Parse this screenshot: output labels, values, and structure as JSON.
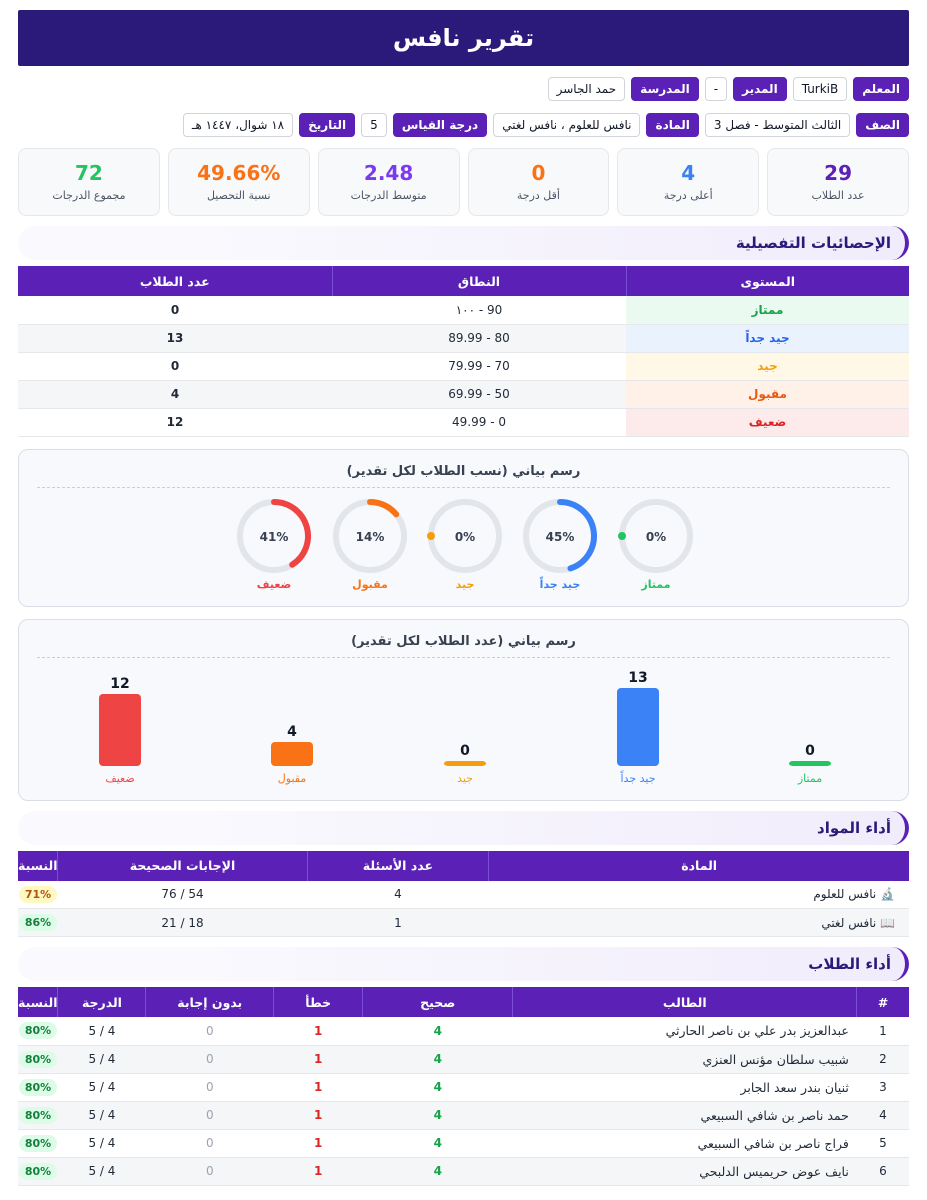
{
  "report_title": "تقرير نافس",
  "info_row1": [
    {
      "label": "المعلم",
      "value": "TurkiB"
    },
    {
      "label": "المدير",
      "value": "-"
    },
    {
      "label": "المدرسة",
      "value": "حمد الجاسر"
    }
  ],
  "info_row2": [
    {
      "label": "الصف",
      "value": "الثالث المتوسط - فصل 3"
    },
    {
      "label": "المادة",
      "value": "نافس للعلوم ، نافس لغتي"
    },
    {
      "label": "درجة القياس",
      "value": "5"
    },
    {
      "label": "التاريخ",
      "value": "١٨ شوال، ١٤٤٧ هـ"
    }
  ],
  "stats": [
    {
      "value": "29",
      "caption": "عدد الطلاب",
      "color": "#5b21b6"
    },
    {
      "value": "4",
      "caption": "أعلى درجة",
      "color": "#3b82f6"
    },
    {
      "value": "0",
      "caption": "أقل درجة",
      "color": "#f97316"
    },
    {
      "value": "2.48",
      "caption": "متوسط الدرجات",
      "color": "#7c3aed"
    },
    {
      "value": "49.66%",
      "caption": "نسبة التحصيل",
      "color": "#f97316"
    },
    {
      "value": "72",
      "caption": "مجموع الدرجات",
      "color": "#22c55e"
    }
  ],
  "section_detailed": "الإحصائيات التفصيلية",
  "detailed_table": {
    "headers": [
      "المستوى",
      "النطاق",
      "عدد الطلاب"
    ],
    "rows": [
      {
        "level": "ممتاز",
        "range": "90 - ١٠٠",
        "count": "0",
        "color": "#16a34a",
        "bg": "#eafaf0"
      },
      {
        "level": "جيد جداً",
        "range": "80 - 89.99",
        "count": "13",
        "color": "#2563eb",
        "bg": "#eaf2fe"
      },
      {
        "level": "جيد",
        "range": "70 - 79.99",
        "count": "0",
        "color": "#f59e0b",
        "bg": "#fff8e6"
      },
      {
        "level": "مقبول",
        "range": "50 - 69.99",
        "count": "4",
        "color": "#ea580c",
        "bg": "#fff1e8"
      },
      {
        "level": "ضعيف",
        "range": "0 - 49.99",
        "count": "12",
        "color": "#dc2626",
        "bg": "#fdeaea"
      }
    ]
  },
  "chart_data": [
    {
      "type": "pie",
      "title": "رسم بياني (نسب الطلاب لكل تقدير)",
      "categories": [
        "ممتاز",
        "جيد جداً",
        "جيد",
        "مقبول",
        "ضعيف"
      ],
      "values": [
        0,
        45,
        0,
        14,
        41
      ],
      "labels": [
        "0%",
        "45%",
        "0%",
        "14%",
        "41%"
      ],
      "colors": [
        "#22c55e",
        "#3b82f6",
        "#f59e0b",
        "#f97316",
        "#ef4444"
      ]
    },
    {
      "type": "bar",
      "title": "رسم بياني (عدد الطلاب لكل تقدير)",
      "categories": [
        "ممتاز",
        "جيد جداً",
        "جيد",
        "مقبول",
        "ضعيف"
      ],
      "values": [
        0,
        13,
        0,
        4,
        12
      ],
      "colors": [
        "#22c55e",
        "#3b82f6",
        "#f59e0b",
        "#f97316",
        "#ef4444"
      ]
    }
  ],
  "section_subjects": "أداء المواد",
  "subjects_table": {
    "headers": [
      "المادة",
      "عدد الأسئلة",
      "الإجابات الصحيحة",
      "النسبة"
    ],
    "rows": [
      {
        "icon": "🔬",
        "name": "نافس للعلوم",
        "questions": "4",
        "correct": "54 / 76",
        "pct": "71%",
        "pct_color": "yellow"
      },
      {
        "icon": "📖",
        "name": "نافس لغتي",
        "questions": "1",
        "correct": "18 / 21",
        "pct": "86%",
        "pct_color": "green"
      }
    ]
  },
  "section_students": "أداء الطلاب",
  "students_table": {
    "headers": [
      "#",
      "الطالب",
      "صحيح",
      "خطأ",
      "بدون إجابة",
      "الدرجة",
      "النسبة"
    ],
    "rows": [
      {
        "n": "1",
        "name": "عبدالعزيز بدر علي بن ناصر الحارثي",
        "correct": "4",
        "wrong": "1",
        "blank": "0",
        "score": "4 / 5",
        "pct": "80%"
      },
      {
        "n": "2",
        "name": "شبيب سلطان مؤنس العنزي",
        "correct": "4",
        "wrong": "1",
        "blank": "0",
        "score": "4 / 5",
        "pct": "80%"
      },
      {
        "n": "3",
        "name": "ثنيان بندر سعد الجابر",
        "correct": "4",
        "wrong": "1",
        "blank": "0",
        "score": "4 / 5",
        "pct": "80%"
      },
      {
        "n": "4",
        "name": "حمد ناصر بن شافي السبيعي",
        "correct": "4",
        "wrong": "1",
        "blank": "0",
        "score": "4 / 5",
        "pct": "80%"
      },
      {
        "n": "5",
        "name": "فراج ناصر بن شافي السبيعي",
        "correct": "4",
        "wrong": "1",
        "blank": "0",
        "score": "4 / 5",
        "pct": "80%"
      },
      {
        "n": "6",
        "name": "نايف عوض حريميس الدلبحي",
        "correct": "4",
        "wrong": "1",
        "blank": "0",
        "score": "4 / 5",
        "pct": "80%"
      }
    ]
  }
}
